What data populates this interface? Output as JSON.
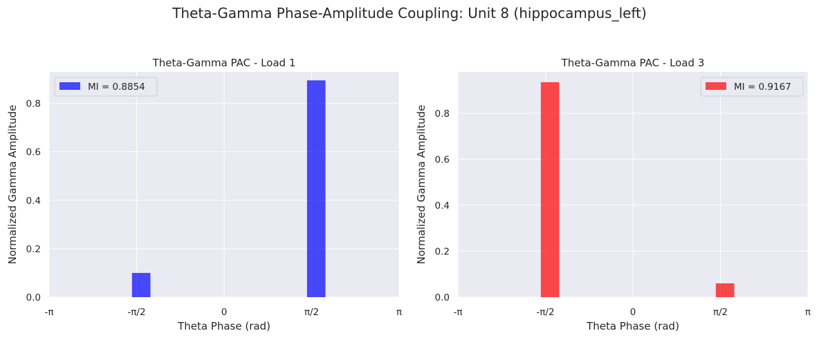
{
  "suptitle": "Theta-Gamma Phase-Amplitude Coupling: Unit 8 (hippocampus_left)",
  "colors": {
    "panel_bg": "#eaeaf2",
    "grid": "#ffffff",
    "blue": "#0000ff",
    "red": "#ff0000"
  },
  "chart_data": [
    {
      "type": "bar",
      "title": "Theta-Gamma PAC - Load 1",
      "xlabel": "Theta Phase (rad)",
      "ylabel": "Normalized Gamma Amplitude",
      "xlim": [
        -3.1416,
        3.1416
      ],
      "ylim": [
        0,
        0.93
      ],
      "x_ticks": [
        -3.1416,
        -1.5708,
        0,
        1.5708,
        3.1416
      ],
      "x_tick_labels": [
        "-π",
        "-π/2",
        "0",
        "π/2",
        "π"
      ],
      "y_ticks": [
        0.0,
        0.2,
        0.4,
        0.6,
        0.8
      ],
      "y_tick_labels": [
        "0.0",
        "0.2",
        "0.4",
        "0.6",
        "0.8"
      ],
      "bar_width": 0.3307,
      "series": [
        {
          "name": "MI = 0.8854",
          "color": "#0000ff",
          "opacity": 0.7,
          "bars": [
            {
              "x": -1.4881,
              "value": 0.1
            },
            {
              "x": 1.6535,
              "value": 0.895
            }
          ]
        }
      ],
      "legend": "upper-left",
      "grid": true
    },
    {
      "type": "bar",
      "title": "Theta-Gamma PAC - Load 3",
      "xlabel": "Theta Phase (rad)",
      "ylabel": "Normalized Gamma Amplitude",
      "xlim": [
        -3.1416,
        3.1416
      ],
      "ylim": [
        0,
        0.98
      ],
      "x_ticks": [
        -3.1416,
        -1.5708,
        0,
        1.5708,
        3.1416
      ],
      "x_tick_labels": [
        "-π",
        "-π/2",
        "0",
        "π/2",
        "π"
      ],
      "y_ticks": [
        0.0,
        0.2,
        0.4,
        0.6,
        0.8
      ],
      "y_tick_labels": [
        "0.0",
        "0.2",
        "0.4",
        "0.6",
        "0.8"
      ],
      "bar_width": 0.3307,
      "series": [
        {
          "name": "MI = 0.9167",
          "color": "#ff0000",
          "opacity": 0.7,
          "bars": [
            {
              "x": -1.4881,
              "value": 0.935
            },
            {
              "x": 1.6535,
              "value": 0.06
            }
          ]
        }
      ],
      "legend": "upper-right",
      "grid": true
    }
  ]
}
